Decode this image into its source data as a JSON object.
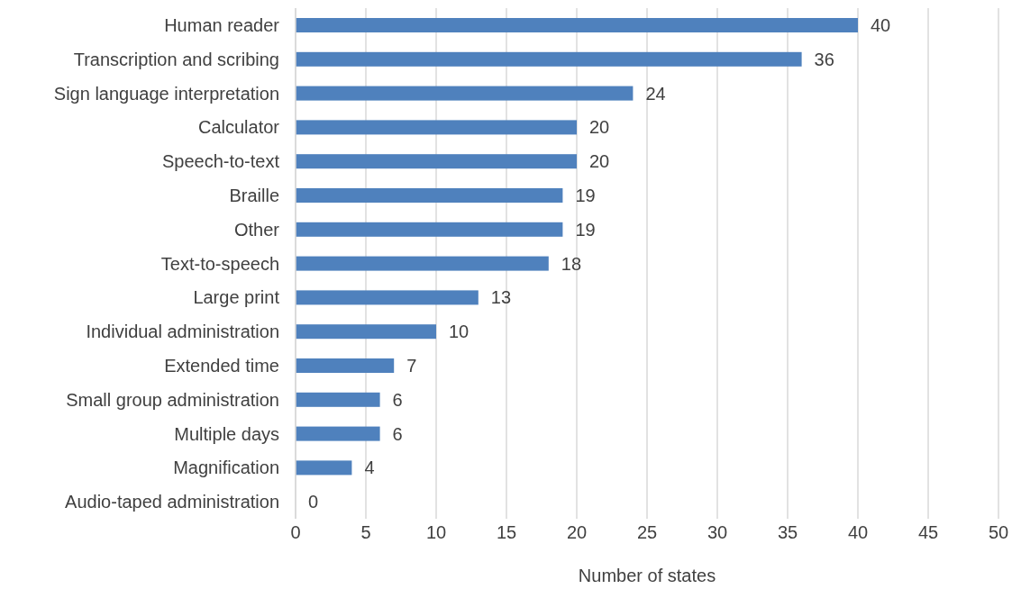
{
  "chart_data": {
    "type": "bar",
    "orientation": "horizontal",
    "categories": [
      "Human reader",
      "Transcription and scribing",
      "Sign language interpretation",
      "Calculator",
      "Speech-to-text",
      "Braille",
      "Other",
      "Text-to-speech",
      "Large print",
      "Individual administration",
      "Extended time",
      "Small group administration",
      "Multiple days",
      "Magnification",
      "Audio-taped administration"
    ],
    "values": [
      40,
      36,
      24,
      20,
      20,
      19,
      19,
      18,
      13,
      10,
      7,
      6,
      6,
      4,
      0
    ],
    "color": "#4f81bd",
    "xlabel": "Number of states",
    "xlim": [
      0,
      50
    ],
    "xticks": [
      0,
      5,
      10,
      15,
      20,
      25,
      30,
      35,
      40,
      45,
      50
    ],
    "grid": "x",
    "data_labels": true
  }
}
